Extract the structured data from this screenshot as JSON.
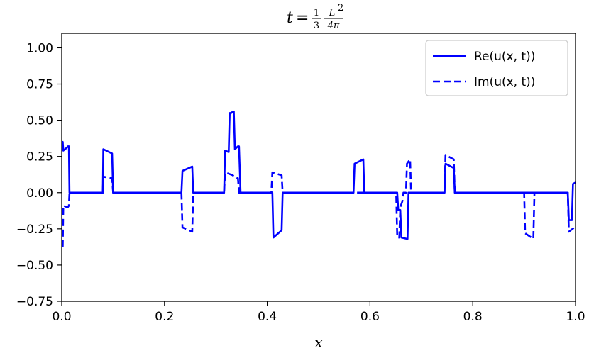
{
  "chart_data": {
    "type": "line",
    "title": {
      "prefix": "t",
      "equals": "=",
      "frac1_num": "1",
      "frac1_den": "3",
      "frac2_num": "L",
      "frac2_sup": "2",
      "frac2_den": "4π"
    },
    "xlabel": "x",
    "ylabel": "",
    "xlim": [
      0.0,
      1.0
    ],
    "ylim": [
      -0.75,
      1.1
    ],
    "x_ticks": [
      0.0,
      0.2,
      0.4,
      0.6,
      0.8,
      1.0
    ],
    "x_tick_labels": [
      "0.0",
      "0.2",
      "0.4",
      "0.6",
      "0.8",
      "1.0"
    ],
    "y_ticks": [
      -0.75,
      -0.5,
      -0.25,
      0.0,
      0.25,
      0.5,
      0.75,
      1.0
    ],
    "y_tick_labels": [
      "−0.75",
      "−0.50",
      "−0.25",
      "0.00",
      "0.25",
      "0.50",
      "0.75",
      "1.00"
    ],
    "grid": false,
    "legend_position": "top-right",
    "series": [
      {
        "name": "Re(u(x, t))",
        "style": "solid",
        "color": "#0000ff",
        "x": [
          0.0,
          0.002,
          0.003,
          0.01,
          0.012,
          0.014,
          0.015,
          0.08,
          0.081,
          0.098,
          0.1,
          0.233,
          0.235,
          0.254,
          0.256,
          0.316,
          0.318,
          0.325,
          0.327,
          0.33,
          0.333,
          0.335,
          0.337,
          0.343,
          0.345,
          0.348,
          0.35,
          0.41,
          0.412,
          0.428,
          0.43,
          0.568,
          0.57,
          0.587,
          0.589,
          0.653,
          0.655,
          0.659,
          0.661,
          0.673,
          0.675,
          0.745,
          0.747,
          0.763,
          0.765,
          0.985,
          0.987,
          0.993,
          0.995,
          1.0
        ],
        "y": [
          0.35,
          0.35,
          0.29,
          0.31,
          0.32,
          0.32,
          0.0,
          0.0,
          0.3,
          0.27,
          0.0,
          0.0,
          0.15,
          0.18,
          0.0,
          0.0,
          0.29,
          0.28,
          0.55,
          0.55,
          0.56,
          0.56,
          0.3,
          0.32,
          0.32,
          0.0,
          0.0,
          0.0,
          -0.31,
          -0.26,
          0.0,
          0.0,
          0.2,
          0.23,
          0.0,
          0.0,
          -0.12,
          -0.12,
          -0.31,
          -0.32,
          0.0,
          0.0,
          0.2,
          0.17,
          0.0,
          0.0,
          -0.19,
          -0.19,
          0.06,
          0.07
        ]
      },
      {
        "name": "Im(u(x, t))",
        "style": "dashed",
        "color": "#0000ff",
        "x": [
          0.0,
          0.002,
          0.003,
          0.01,
          0.012,
          0.014,
          0.015,
          0.08,
          0.081,
          0.098,
          0.1,
          0.233,
          0.235,
          0.254,
          0.256,
          0.316,
          0.318,
          0.333,
          0.335,
          0.343,
          0.345,
          0.408,
          0.41,
          0.428,
          0.43,
          0.651,
          0.653,
          0.657,
          0.659,
          0.663,
          0.665,
          0.67,
          0.672,
          0.678,
          0.68,
          0.745,
          0.747,
          0.763,
          0.765,
          0.9,
          0.902,
          0.918,
          0.92,
          0.985,
          0.987,
          0.998,
          1.0
        ],
        "y": [
          -0.37,
          -0.37,
          -0.09,
          -0.1,
          -0.1,
          -0.09,
          0.0,
          0.0,
          0.11,
          0.1,
          0.0,
          0.0,
          -0.24,
          -0.27,
          0.0,
          0.0,
          0.14,
          0.12,
          0.11,
          0.1,
          0.0,
          0.0,
          0.14,
          0.12,
          0.0,
          0.0,
          -0.31,
          -0.31,
          -0.1,
          -0.06,
          0.0,
          0.0,
          0.2,
          0.23,
          0.0,
          0.0,
          0.26,
          0.23,
          0.0,
          0.0,
          -0.28,
          -0.32,
          0.0,
          0.0,
          -0.27,
          -0.24,
          -0.23
        ]
      }
    ]
  }
}
